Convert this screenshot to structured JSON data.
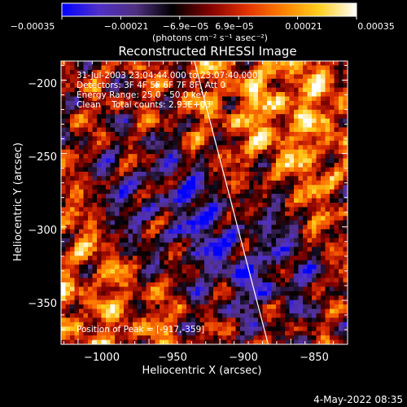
{
  "chart_data": {
    "type": "heatmap",
    "title": "Reconstructed RHESSI Image",
    "xlabel": "Heliocentric X (arcsec)",
    "ylabel": "Heliocentric Y (arcsec)",
    "xlim": [
      -1012,
      -810
    ],
    "ylim": [
      -380,
      -187
    ],
    "x_ticks": [
      -1000,
      -950,
      -900,
      -850
    ],
    "x_tick_labels": [
      "−1000",
      "−950",
      "−900",
      "−850"
    ],
    "y_ticks": [
      -200,
      -250,
      -300,
      -350
    ],
    "y_tick_labels": [
      "−200",
      "−250",
      "−300",
      "−350"
    ],
    "colorbar": {
      "range": [
        -0.00035,
        0.00035
      ],
      "tick_labels": [
        "−0.00035",
        "−0.00021",
        "−6.9e−05",
        "6.9e−05",
        "0.00021",
        "0.00035"
      ],
      "unit_label": "(photons cm⁻² s⁻¹ asec⁻²)",
      "colors": [
        "#0000ff",
        "#5030c8",
        "#503080",
        "#000000",
        "#800000",
        "#e03000",
        "#ff8000",
        "#ffd020",
        "#ffffff"
      ]
    },
    "annotations": [
      "31-Jul-2003 23:04:44.000 to 23:07:40.000",
      "Detectors: 3F 4F 5F 6F 7F 8F, Att 0",
      "Energy Range: 25.0 - 50.0 keV",
      "Clean    Total counts: 2.93E+03"
    ],
    "peak_label": "Position of Peak = [-917,-359]",
    "limb_line": [
      [
        -918,
        -187
      ],
      [
        -866,
        -380
      ]
    ]
  },
  "footer": {
    "date": "4-May-2022 08:35"
  },
  "palette": {
    "axes": "#ffffff",
    "background": "#000000"
  }
}
